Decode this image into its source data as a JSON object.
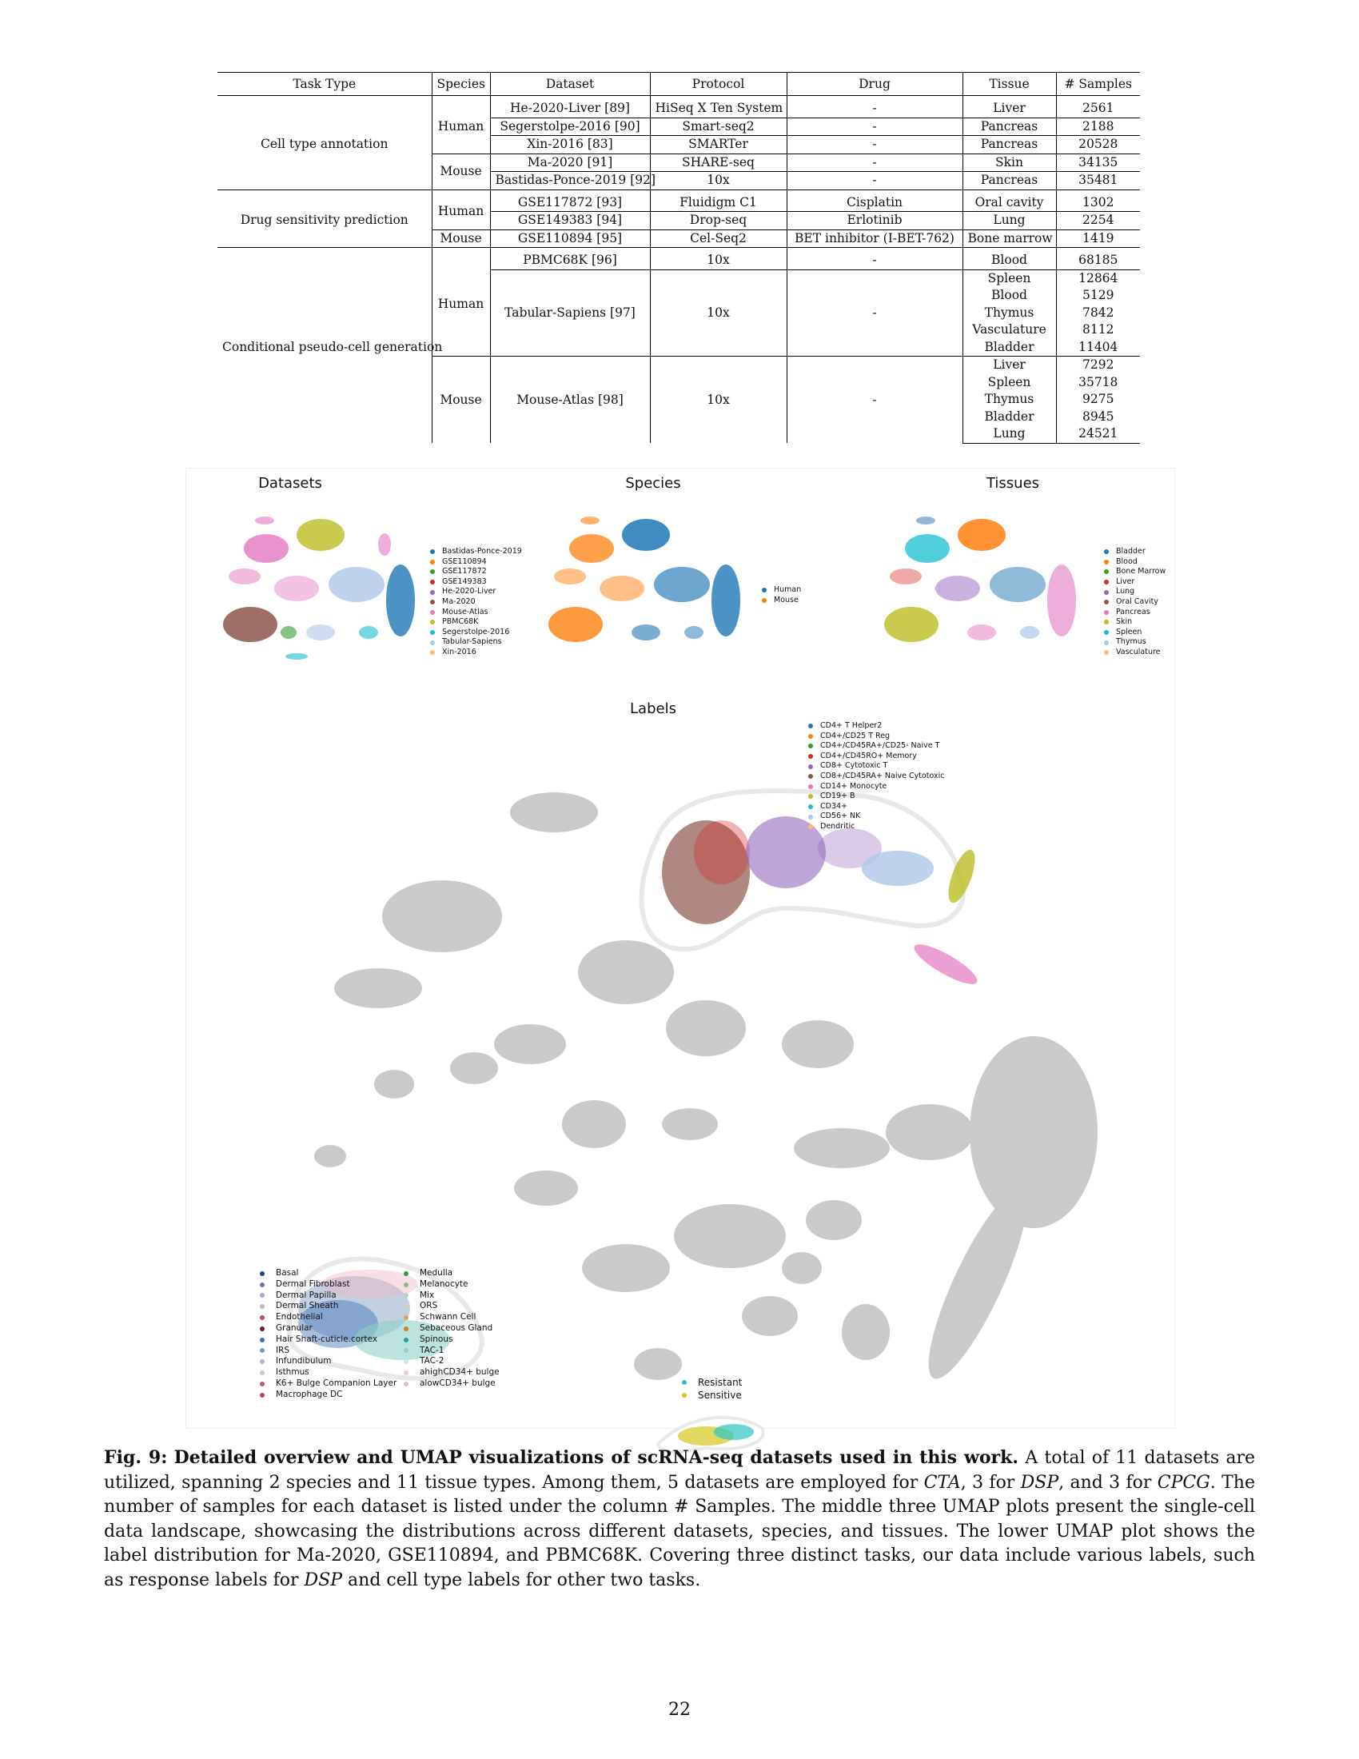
{
  "table": {
    "headers": [
      "Task Type",
      "Species",
      "Dataset",
      "Protocol",
      "Drug",
      "Tissue",
      "# Samples"
    ],
    "groups": [
      {
        "task": "Cell type annotation",
        "species": [
          {
            "name": "Human",
            "rows": [
              {
                "dataset": "He-2020-Liver [89]",
                "protocol": "HiSeq X Ten System",
                "drug": "-",
                "tissue": "Liver",
                "samples": "2561"
              },
              {
                "dataset": "Segerstolpe-2016 [90]",
                "protocol": "Smart-seq2",
                "drug": "-",
                "tissue": "Pancreas",
                "samples": "2188"
              },
              {
                "dataset": "Xin-2016 [83]",
                "protocol": "SMARTer",
                "drug": "-",
                "tissue": "Pancreas",
                "samples": "20528"
              }
            ]
          },
          {
            "name": "Mouse",
            "rows": [
              {
                "dataset": "Ma-2020 [91]",
                "protocol": "SHARE-seq",
                "drug": "-",
                "tissue": "Skin",
                "samples": "34135"
              },
              {
                "dataset": "Bastidas-Ponce-2019 [92]",
                "protocol": "10x",
                "drug": "-",
                "tissue": "Pancreas",
                "samples": "35481"
              }
            ]
          }
        ]
      },
      {
        "task": "Drug sensitivity prediction",
        "species": [
          {
            "name": "Human",
            "rows": [
              {
                "dataset": "GSE117872 [93]",
                "protocol": "Fluidigm C1",
                "drug": "Cisplatin",
                "tissue": "Oral cavity",
                "samples": "1302"
              },
              {
                "dataset": "GSE149383 [94]",
                "protocol": "Drop-seq",
                "drug": "Erlotinib",
                "tissue": "Lung",
                "samples": "2254"
              }
            ]
          },
          {
            "name": "Mouse",
            "rows": [
              {
                "dataset": "GSE110894 [95]",
                "protocol": "Cel-Seq2",
                "drug": "BET inhibitor (I-BET-762)",
                "tissue": "Bone marrow",
                "samples": "1419"
              }
            ]
          }
        ]
      },
      {
        "task": "Conditional pseudo-cell generation",
        "pbmc": {
          "dataset": "PBMC68K [96]",
          "protocol": "10x",
          "drug": "-",
          "tissue": "Blood",
          "samples": "68185"
        },
        "tabular": {
          "dataset": "Tabular-Sapiens [97]",
          "protocol": "10x",
          "drug": "-",
          "tissues": [
            "Spleen",
            "Blood",
            "Thymus",
            "Vasculature",
            "Bladder"
          ],
          "samples": [
            "12864",
            "5129",
            "7842",
            "8112",
            "11404"
          ]
        },
        "mouse_atlas": {
          "dataset": "Mouse-Atlas [98]",
          "protocol": "10x",
          "drug": "-",
          "tissues": [
            "Liver",
            "Spleen",
            "Thymus",
            "Bladder",
            "Lung"
          ],
          "samples": [
            "7292",
            "35718",
            "9275",
            "8945",
            "24521"
          ]
        },
        "species_human": "Human",
        "species_mouse": "Mouse"
      }
    ]
  },
  "figure": {
    "titles": {
      "datasets": "Datasets",
      "species": "Species",
      "tissues": "Tissues",
      "labels": "Labels"
    },
    "datasets_legend": [
      {
        "label": "Bastidas-Ponce-2019",
        "color": "#1f77b4"
      },
      {
        "label": "GSE110894",
        "color": "#ff7f0e"
      },
      {
        "label": "GSE117872",
        "color": "#2ca02c"
      },
      {
        "label": "GSE149383",
        "color": "#d62728"
      },
      {
        "label": "He-2020-Liver",
        "color": "#9467bd"
      },
      {
        "label": "Ma-2020",
        "color": "#8c564b"
      },
      {
        "label": "Mouse-Atlas",
        "color": "#e377c2"
      },
      {
        "label": "PBMC68K",
        "color": "#bcbd22"
      },
      {
        "label": "Segerstolpe-2016",
        "color": "#17becf"
      },
      {
        "label": "Tabular-Sapiens",
        "color": "#aec7e8"
      },
      {
        "label": "Xin-2016",
        "color": "#ffbb78"
      }
    ],
    "species_legend": [
      {
        "label": "Human",
        "color": "#1f77b4"
      },
      {
        "label": "Mouse",
        "color": "#ff7f0e"
      }
    ],
    "tissues_legend": [
      {
        "label": "Bladder",
        "color": "#1f77b4"
      },
      {
        "label": "Blood",
        "color": "#ff7f0e"
      },
      {
        "label": "Bone Marrow",
        "color": "#2ca02c"
      },
      {
        "label": "Liver",
        "color": "#d62728"
      },
      {
        "label": "Lung",
        "color": "#9467bd"
      },
      {
        "label": "Oral Cavity",
        "color": "#8c564b"
      },
      {
        "label": "Pancreas",
        "color": "#e377c2"
      },
      {
        "label": "Skin",
        "color": "#bcbd22"
      },
      {
        "label": "Spleen",
        "color": "#17becf"
      },
      {
        "label": "Thymus",
        "color": "#aec7e8"
      },
      {
        "label": "Vasculature",
        "color": "#ffbb78"
      }
    ],
    "pbmc_legend": [
      {
        "label": "CD4+ T Helper2",
        "color": "#1f77b4"
      },
      {
        "label": "CD4+/CD25 T Reg",
        "color": "#ff7f0e"
      },
      {
        "label": "CD4+/CD45RA+/CD25- Naive T",
        "color": "#2ca02c"
      },
      {
        "label": "CD4+/CD45RO+ Memory",
        "color": "#d62728"
      },
      {
        "label": "CD8+ Cytotoxic T",
        "color": "#9467bd"
      },
      {
        "label": "CD8+/CD45RA+ Naive Cytotoxic",
        "color": "#8c564b"
      },
      {
        "label": "CD14+ Monocyte",
        "color": "#e377c2"
      },
      {
        "label": "CD19+ B",
        "color": "#bcbd22"
      },
      {
        "label": "CD34+",
        "color": "#17becf"
      },
      {
        "label": "CD56+ NK",
        "color": "#aec7e8"
      },
      {
        "label": "Dendritic",
        "color": "#ffbb78"
      }
    ],
    "skin_legend_col1": [
      {
        "label": "Basal",
        "color": "#2c3e8f"
      },
      {
        "label": "Dermal Fibroblast",
        "color": "#6a6fa8"
      },
      {
        "label": "Dermal Papilla",
        "color": "#a5a8c8"
      },
      {
        "label": "Dermal Sheath",
        "color": "#b8b8c8"
      },
      {
        "label": "Endothelial",
        "color": "#b04d6e"
      },
      {
        "label": "Granular",
        "color": "#6b1a2e"
      },
      {
        "label": "Hair Shaft-cuticle.cortex",
        "color": "#3b6fb6"
      },
      {
        "label": "IRS",
        "color": "#7b95c8"
      },
      {
        "label": "Infundibulum",
        "color": "#a9b6cf"
      },
      {
        "label": "Isthmus",
        "color": "#c8c8d0"
      },
      {
        "label": "K6+ Bulge Companion Layer",
        "color": "#b05a7a"
      },
      {
        "label": "Macrophage DC",
        "color": "#c0405a"
      }
    ],
    "skin_legend_col2": [
      {
        "label": "Medulla",
        "color": "#2e9a45"
      },
      {
        "label": "Melanocyte",
        "color": "#7dc08a"
      },
      {
        "label": "Mix",
        "color": "#b3d6b8"
      },
      {
        "label": "ORS",
        "color": "#cfd3c0"
      },
      {
        "label": "Schwann Cell",
        "color": "#d7a36a"
      },
      {
        "label": "Sebaceous Gland",
        "color": "#c8861e"
      },
      {
        "label": "Spinous",
        "color": "#2aa198"
      },
      {
        "label": "TAC-1",
        "color": "#8fd0c8"
      },
      {
        "label": "TAC-2",
        "color": "#c7e8e2"
      },
      {
        "label": "ahighCD34+ bulge",
        "color": "#f3c7d2"
      },
      {
        "label": "alowCD34+ bulge",
        "color": "#f0b6c6"
      }
    ],
    "drug_legend": [
      {
        "label": "Resistant",
        "color": "#2ec4c4"
      },
      {
        "label": "Sensitive",
        "color": "#d4c81e"
      }
    ]
  },
  "caption": {
    "label": "Fig. 9:",
    "title": "Detailed overview and UMAP visualizations of scRNA-seq datasets used in this work.",
    "s1": "A total of 11 datasets are utilized, spanning 2 species and 11 tissue types. Among them, 5 datasets are employed for",
    "cta": "CTA",
    "s2": ", 3 for",
    "dsp": "DSP",
    "s3": ", and 3 for",
    "cpcg": "CPCG",
    "s4": ". The number of samples for each dataset is listed under the column # Samples. The middle three UMAP plots present the single-cell data landscape, showcasing the distributions across different datasets, species, and tissues. The lower UMAP plot shows the label distribution for Ma-2020, GSE110894, and PBMC68K. Covering three distinct tasks, our data include various labels, such as response labels for",
    "dsp2": "DSP",
    "s5": "and cell type labels for other two tasks."
  },
  "page_number": "22"
}
